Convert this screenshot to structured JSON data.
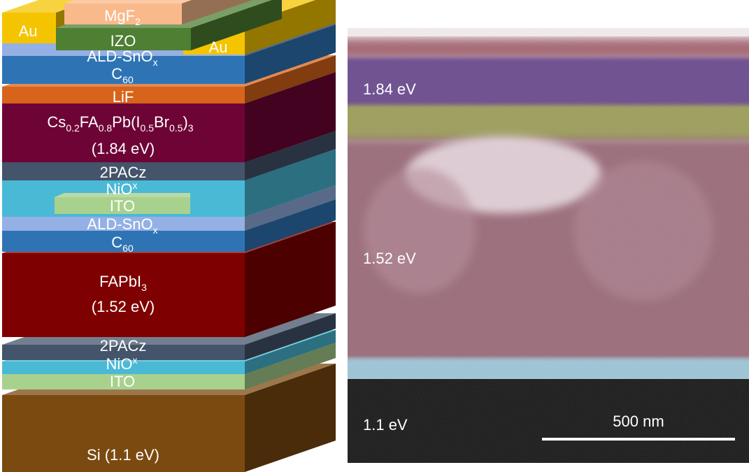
{
  "stack": {
    "mgf2": {
      "main": "MgF",
      "sub": "2"
    },
    "au_left": "Au",
    "au_right": "Au",
    "izo": "IZO",
    "sno_top": {
      "main": "ALD-SnO",
      "sub": "x"
    },
    "c60_top": {
      "main": "C",
      "sub": "60"
    },
    "lif": "LiF",
    "perovskite_top": {
      "p1": "Cs",
      "s1": "0.2",
      "p2": "FA",
      "s2": "0.8",
      "p3": "Pb(I",
      "s3": "0.5",
      "p4": "Br",
      "s4": "0.5",
      "p5": ")",
      "s5": "3",
      "bandgap": "(1.84 eV)"
    },
    "pacz_mid": "2PACz",
    "nio_mid": {
      "main": "NiO",
      "sub": "x"
    },
    "ito_mid": "ITO",
    "sno_mid": {
      "main": "ALD-SnO",
      "sub": "x"
    },
    "c60_mid": {
      "main": "C",
      "sub": "60"
    },
    "perovskite_bottom": {
      "main": "FAPbI",
      "sub": "3",
      "bandgap": "(1.52 eV)"
    },
    "pacz_bottom": "2PACz",
    "nio_bottom": {
      "main": "NiO",
      "sub": "x"
    },
    "ito_bottom": "ITO",
    "si": "Si (1.1 eV)"
  },
  "colors": {
    "au": "#f5c400",
    "mgf2": "#f9b98a",
    "izo": "#4e7f33",
    "sno": "#94b0e4",
    "c60": "#2e74b5",
    "lif": "#d7641a",
    "perovskite_top": "#6e0436",
    "pacz": "#44546a",
    "nio": "#4ab9d6",
    "ito": "#a9d18e",
    "perovskite_bottom": "#7f0000",
    "si": "#7b4a10"
  },
  "sem": {
    "label_top": "1.84 eV",
    "label_mid": "1.52 eV",
    "label_bottom": "1.1 eV",
    "scale_bar": "500 nm"
  }
}
